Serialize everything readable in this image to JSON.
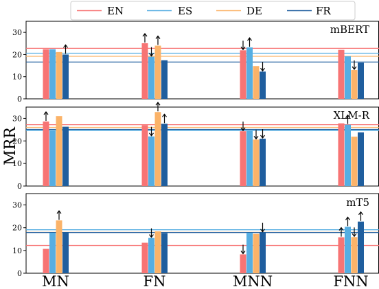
{
  "chart_data": {
    "type": "bar",
    "ylabel": "MRR",
    "categories": [
      "MN",
      "FN",
      "MNN",
      "FNN"
    ],
    "ylim": [
      0,
      35
    ],
    "yticks": [
      0,
      10,
      20,
      30
    ],
    "grid": false,
    "legend_placement": "top-center",
    "series_names": [
      "EN",
      "ES",
      "DE",
      "FR"
    ],
    "colors": {
      "EN": "#f77474",
      "ES": "#56aee2",
      "DE": "#fbb369",
      "FR": "#1f5e9e"
    },
    "panels": [
      {
        "title": "mBERT",
        "baselines": {
          "EN": 22.8,
          "ES": 20.6,
          "DE": 19.2,
          "FR": 16.6
        },
        "values": {
          "EN": [
            22.4,
            25.1,
            21.9,
            22.1
          ],
          "ES": [
            22.4,
            19.0,
            23.2,
            19.2
          ],
          "DE": [
            21.1,
            24.0,
            14.8,
            13.0
          ],
          "FR": [
            20.0,
            17.4,
            12.3,
            16.3
          ]
        },
        "arrows": {
          "EN": [
            "",
            "up",
            "down",
            ""
          ],
          "ES": [
            "",
            "down",
            "up",
            ""
          ],
          "DE": [
            "",
            "up",
            "",
            "down"
          ],
          "FR": [
            "up",
            "",
            "down",
            ""
          ]
        }
      },
      {
        "title": "XLM-R",
        "baselines": {
          "EN": 27.2,
          "ES": 24.6,
          "DE": 26.0,
          "FR": 25.1
        },
        "values": {
          "EN": [
            28.6,
            27.0,
            24.3,
            27.8
          ],
          "ES": [
            24.5,
            22.0,
            24.6,
            27.2
          ],
          "DE": [
            31.0,
            32.8,
            20.6,
            21.9
          ],
          "FR": [
            26.3,
            27.6,
            21.0,
            23.8
          ]
        },
        "arrows": {
          "EN": [
            "up",
            "",
            "down",
            ""
          ],
          "ES": [
            "",
            "down",
            "",
            "up"
          ],
          "DE": [
            "",
            "up",
            "down",
            ""
          ],
          "FR": [
            "",
            "up",
            "down",
            ""
          ]
        }
      },
      {
        "title": "mT5",
        "baselines": {
          "EN": 12.2,
          "ES": 19.1,
          "DE": 18.0,
          "FR": 17.9
        },
        "values": {
          "EN": [
            10.7,
            13.4,
            8.3,
            15.8
          ],
          "ES": [
            17.8,
            15.5,
            17.8,
            20.4
          ],
          "DE": [
            23.2,
            18.4,
            17.3,
            15.9
          ],
          "FR": [
            18.0,
            17.6,
            17.9,
            22.7
          ]
        },
        "arrows": {
          "EN": [
            "",
            "",
            "down",
            "up"
          ],
          "ES": [
            "",
            "down",
            "",
            "up"
          ],
          "DE": [
            "up",
            "",
            "",
            "down"
          ],
          "FR": [
            "",
            "",
            "down",
            "up"
          ]
        }
      }
    ]
  }
}
